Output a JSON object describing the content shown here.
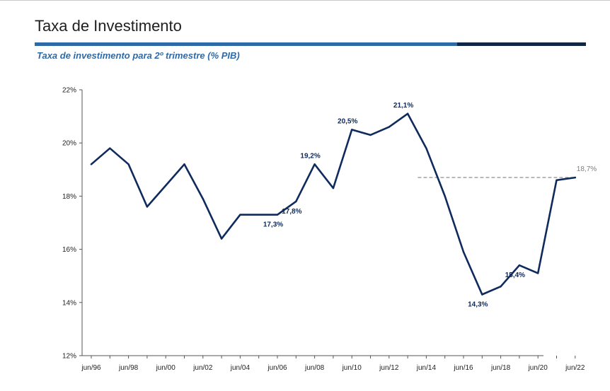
{
  "header": {
    "title": "Taxa de Investimento"
  },
  "colors": {
    "accent_light": "#2e6aa8",
    "accent_dark": "#0f2647",
    "series_line": "#0f2a5c",
    "reference_line": "#9a9a9a",
    "reference_label": "#808080"
  },
  "chart_data": {
    "type": "line",
    "title": "Taxa de investimento para 2º trimestre (% PIB)",
    "xlabel": "",
    "ylabel": "",
    "ylim": [
      12,
      22
    ],
    "y_ticks": [
      "12%",
      "14%",
      "16%",
      "18%",
      "20%",
      "22%"
    ],
    "y_tick_values": [
      12,
      14,
      16,
      18,
      20,
      22
    ],
    "x_tick_labels": [
      "jun/96",
      "jun/98",
      "jun/00",
      "jun/02",
      "jun/04",
      "jun/06",
      "jun/08",
      "jun/10",
      "jun/12",
      "jun/14",
      "jun/16",
      "jun/18",
      "jun/20",
      "jun/22"
    ],
    "grid": false,
    "legend": "none",
    "series": [
      {
        "x": [
          "jun/96",
          "jun/97",
          "jun/98",
          "jun/99",
          "jun/00",
          "jun/01",
          "jun/02",
          "jun/03",
          "jun/04",
          "jun/05",
          "jun/06",
          "jun/07",
          "jun/08",
          "jun/09",
          "jun/10",
          "jun/11",
          "jun/12",
          "jun/13",
          "jun/14",
          "jun/15",
          "jun/16",
          "jun/17",
          "jun/18",
          "jun/19",
          "jun/20",
          "jun/21",
          "jun/22"
        ],
        "values": [
          19.2,
          19.8,
          19.2,
          17.6,
          18.4,
          19.2,
          17.9,
          16.4,
          17.3,
          17.3,
          17.3,
          17.8,
          19.2,
          18.3,
          20.5,
          20.3,
          20.6,
          21.1,
          19.8,
          18.0,
          15.9,
          14.3,
          14.6,
          15.4,
          15.1,
          18.6,
          18.7
        ]
      }
    ],
    "data_labels": [
      {
        "x": "jun/06",
        "value": 17.3,
        "text": "17,3%",
        "position": "below"
      },
      {
        "x": "jun/07",
        "value": 17.8,
        "text": "17,8%",
        "position": "below"
      },
      {
        "x": "jun/08",
        "value": 19.2,
        "text": "19,2%",
        "position": "above"
      },
      {
        "x": "jun/10",
        "value": 20.5,
        "text": "20,5%",
        "position": "above"
      },
      {
        "x": "jun/13",
        "value": 21.1,
        "text": "21,1%",
        "position": "above"
      },
      {
        "x": "jun/17",
        "value": 14.3,
        "text": "14,3%",
        "position": "below"
      },
      {
        "x": "jun/19",
        "value": 15.4,
        "text": "15,4%",
        "position": "below"
      }
    ],
    "reference_line": {
      "value": 18.7,
      "from_x": "jun/14",
      "to_x": "jun/22",
      "label": "18,7%",
      "style": "dashed"
    }
  }
}
